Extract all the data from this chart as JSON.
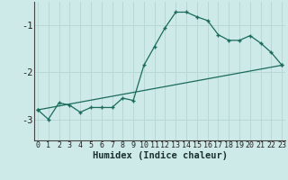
{
  "xlabel": "Humidex (Indice chaleur)",
  "background_color": "#ceeae8",
  "grid_color": "#b8d8d5",
  "line_color": "#1a6b5a",
  "x_ticks": [
    0,
    1,
    2,
    3,
    4,
    5,
    6,
    7,
    8,
    9,
    10,
    11,
    12,
    13,
    14,
    15,
    16,
    17,
    18,
    19,
    20,
    21,
    22,
    23
  ],
  "y_ticks": [
    -3,
    -2,
    -1
  ],
  "ylim": [
    -3.45,
    -0.5
  ],
  "xlim": [
    -0.3,
    23.3
  ],
  "line1_x": [
    0,
    1,
    2,
    3,
    4,
    5,
    6,
    7,
    8,
    9,
    10,
    11,
    12,
    13,
    14,
    15,
    16,
    17,
    18,
    19,
    20,
    21,
    22,
    23
  ],
  "line1_y": [
    -2.8,
    -3.0,
    -2.65,
    -2.7,
    -2.85,
    -2.75,
    -2.75,
    -2.75,
    -2.55,
    -2.6,
    -1.85,
    -1.45,
    -1.05,
    -0.72,
    -0.72,
    -0.82,
    -0.9,
    -1.2,
    -1.32,
    -1.32,
    -1.22,
    -1.38,
    -1.58,
    -1.85
  ],
  "line2_x": [
    0,
    23
  ],
  "line2_y": [
    -2.8,
    -1.85
  ],
  "tick_fontsize": 6.0,
  "xlabel_fontsize": 7.5,
  "marker_size": 3.0
}
